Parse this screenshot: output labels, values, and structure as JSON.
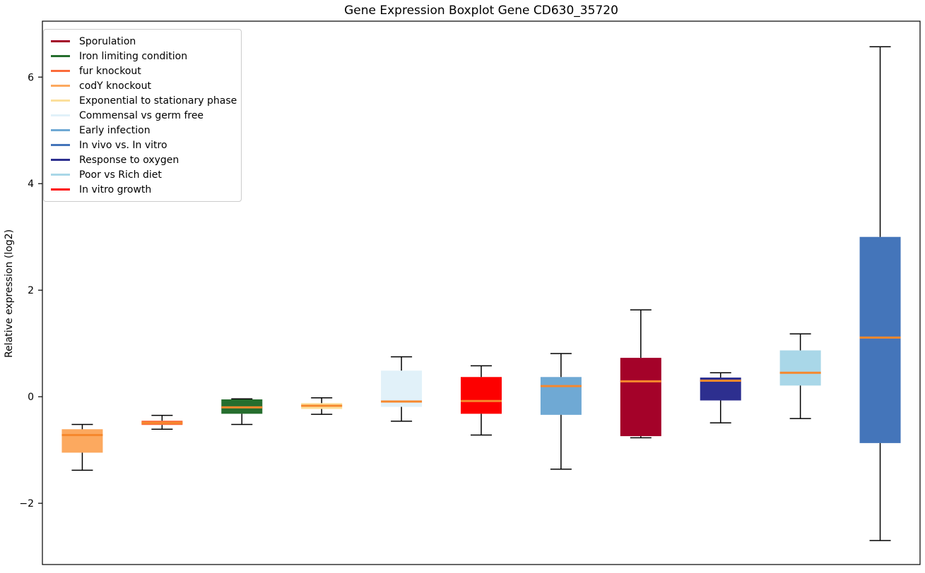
{
  "window": {
    "background": "#ffffff"
  },
  "chart_data": {
    "type": "boxplot",
    "title": "Gene Expression Boxplot Gene CD630_35720",
    "xlabel": "",
    "ylabel": "Relative expression (log2)",
    "ylim": [
      -3.15,
      7.05
    ],
    "grid": false,
    "legend_position": "upper-left",
    "x_tick_labels": [],
    "yticks": [
      {
        "v": -2,
        "label": "−2"
      },
      {
        "v": 0,
        "label": "0"
      },
      {
        "v": 2,
        "label": "2"
      },
      {
        "v": 4,
        "label": "4"
      },
      {
        "v": 6,
        "label": "6"
      }
    ],
    "style": {
      "median_color": "#f6882d",
      "whisker_color": "#000000",
      "spine_color": "#000000"
    },
    "legend": [
      {
        "label": "Sporulation",
        "color": "#a40229"
      },
      {
        "label": "Iron limiting condition",
        "color": "#256e2e"
      },
      {
        "label": "fur knockout",
        "color": "#fb6b3b"
      },
      {
        "label": "codY knockout",
        "color": "#fca95f"
      },
      {
        "label": "Exponential to stationary phase",
        "color": "#fcdf9c"
      },
      {
        "label": "Commensal vs germ free",
        "color": "#e1f1f9"
      },
      {
        "label": "Early infection",
        "color": "#6fa9d4"
      },
      {
        "label": "In vivo vs. In vitro",
        "color": "#4475ba"
      },
      {
        "label": "Response to oxygen",
        "color": "#2d2f8f"
      },
      {
        "label": "Poor vs Rich diet",
        "color": "#a9d7e8"
      },
      {
        "label": "In vitro growth",
        "color": "#fd0000"
      }
    ],
    "boxes": [
      {
        "condition": "codY knockout",
        "color": "#fca95f",
        "whisker_low": -1.38,
        "q1": -1.05,
        "median": -0.72,
        "q3": -0.61,
        "whisker_high": -0.52
      },
      {
        "condition": "fur knockout",
        "color": "#fb6b3b",
        "whisker_low": -0.61,
        "q1": -0.53,
        "median": -0.49,
        "q3": -0.45,
        "whisker_high": -0.35
      },
      {
        "condition": "Iron limiting condition",
        "color": "#256e2e",
        "whisker_low": -0.52,
        "q1": -0.32,
        "median": -0.2,
        "q3": -0.05,
        "whisker_high": -0.04
      },
      {
        "condition": "Exponential to stationary phase",
        "color": "#fcdf9c",
        "whisker_low": -0.33,
        "q1": -0.23,
        "median": -0.17,
        "q3": -0.12,
        "whisker_high": -0.02
      },
      {
        "condition": "Commensal vs germ free",
        "color": "#e1f1f9",
        "whisker_low": -0.46,
        "q1": -0.19,
        "median": -0.09,
        "q3": 0.49,
        "whisker_high": 0.75
      },
      {
        "condition": "In vitro growth",
        "color": "#fd0000",
        "whisker_low": -0.72,
        "q1": -0.32,
        "median": -0.08,
        "q3": 0.37,
        "whisker_high": 0.58
      },
      {
        "condition": "Early infection",
        "color": "#6fa9d4",
        "whisker_low": -1.36,
        "q1": -0.34,
        "median": 0.2,
        "q3": 0.37,
        "whisker_high": 0.81
      },
      {
        "condition": "Sporulation",
        "color": "#a40229",
        "whisker_low": -0.77,
        "q1": -0.74,
        "median": 0.29,
        "q3": 0.73,
        "whisker_high": 1.63
      },
      {
        "condition": "Response to oxygen",
        "color": "#2d2f8f",
        "whisker_low": -0.49,
        "q1": -0.07,
        "median": 0.3,
        "q3": 0.36,
        "whisker_high": 0.45
      },
      {
        "condition": "Poor vs Rich diet",
        "color": "#a9d7e8",
        "whisker_low": -0.41,
        "q1": 0.21,
        "median": 0.45,
        "q3": 0.87,
        "whisker_high": 1.18
      },
      {
        "condition": "In vivo vs. In vitro",
        "color": "#4475ba",
        "whisker_low": -2.7,
        "q1": -0.87,
        "median": 1.11,
        "q3": 3.0,
        "whisker_high": 6.57
      }
    ]
  }
}
